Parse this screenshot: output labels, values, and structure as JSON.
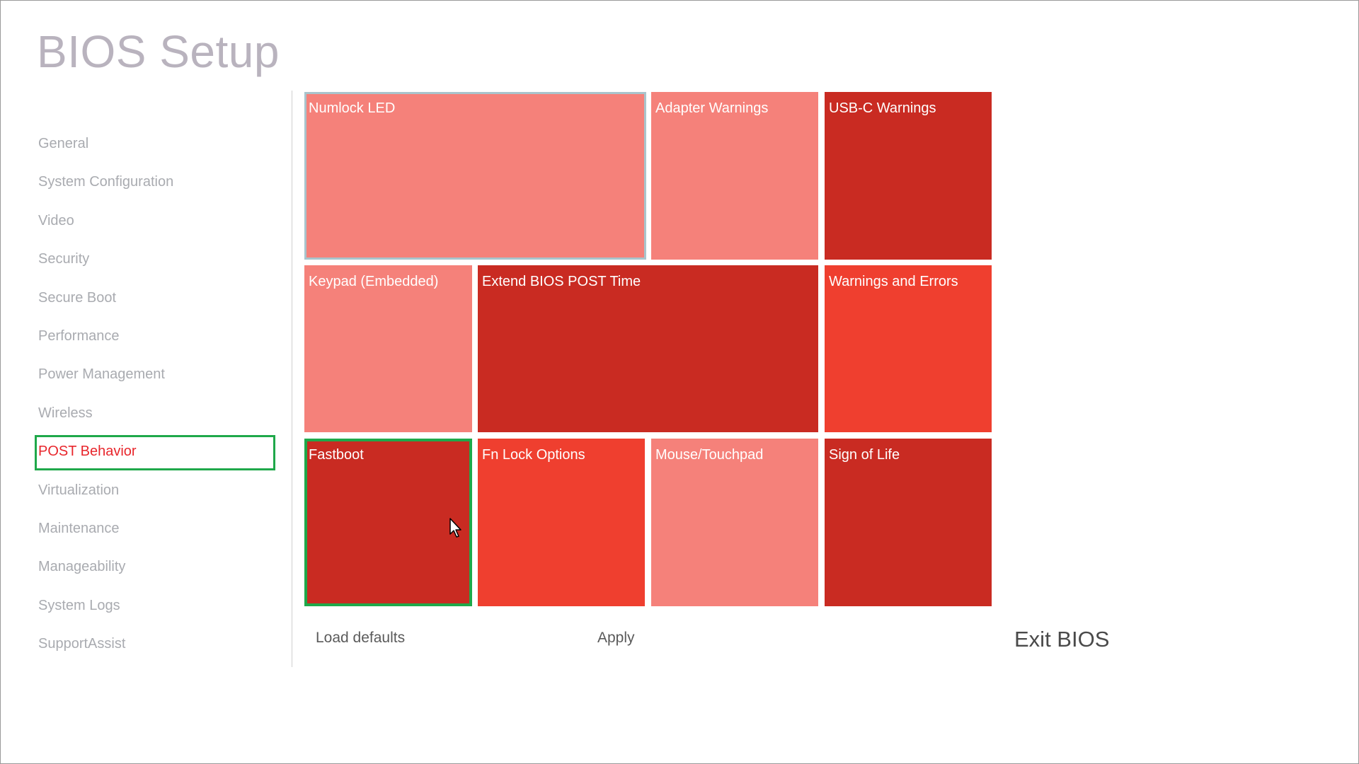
{
  "app": {
    "title": "BIOS Setup"
  },
  "sidebar": {
    "items": [
      {
        "label": "General"
      },
      {
        "label": "System Configuration"
      },
      {
        "label": "Video"
      },
      {
        "label": "Security"
      },
      {
        "label": "Secure Boot"
      },
      {
        "label": "Performance"
      },
      {
        "label": "Power Management"
      },
      {
        "label": "Wireless"
      },
      {
        "label": "POST Behavior"
      },
      {
        "label": "Virtualization"
      },
      {
        "label": "Maintenance"
      },
      {
        "label": "Manageability"
      },
      {
        "label": "System Logs"
      },
      {
        "label": "SupportAssist"
      }
    ],
    "selected": "POST Behavior"
  },
  "tiles": {
    "numlock": "Numlock LED",
    "adapter": "Adapter Warnings",
    "usbc": "USB-C Warnings",
    "keypad": "Keypad (Embedded)",
    "extend": "Extend BIOS POST Time",
    "warnings": "Warnings and Errors",
    "fastboot": "Fastboot",
    "fnlock": "Fn Lock Options",
    "mouse": "Mouse/Touchpad",
    "signoflife": "Sign of Life"
  },
  "footer": {
    "load_defaults": "Load defaults",
    "apply": "Apply",
    "exit": "Exit BIOS"
  },
  "colors": {
    "tile_light": "#f5817a",
    "tile_dark": "#c92b22",
    "tile_medium": "#ef3f2f",
    "selection": "#1fa84a",
    "selected_text": "#e8262c"
  }
}
